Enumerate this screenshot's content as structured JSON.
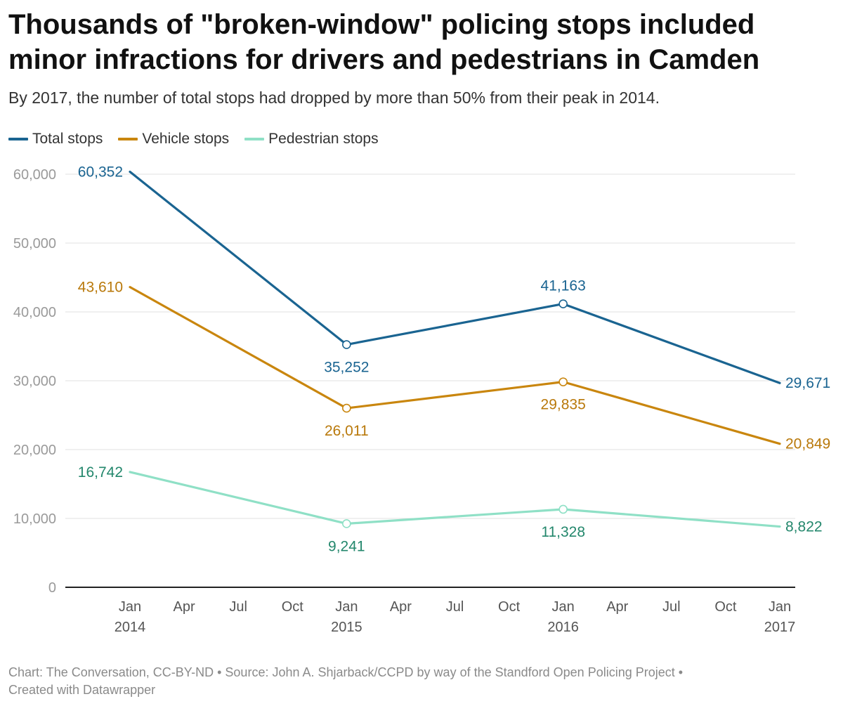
{
  "title": "Thousands of \"broken-window\" policing stops included minor infractions for drivers and pedestrians in Camden",
  "subtitle": "By 2017, the number of total stops had dropped by more than 50% from their peak in 2014.",
  "footer": {
    "line1": "Chart: The Conversation, CC-BY-ND • Source: John A. Shjarback/CCPD by way of the Standford Open Policing Project •",
    "line2": "Created with Datawrapper"
  },
  "chart_data": {
    "type": "line",
    "title": "Thousands of \"broken-window\" policing stops included minor infractions for drivers and pedestrians in Camden",
    "subtitle": "By 2017, the number of total stops had dropped by more than 50% from their peak in 2014.",
    "x": [
      "2014-01",
      "2015-01",
      "2016-01",
      "2017-01"
    ],
    "x_ticks": [
      {
        "month": "Jan",
        "year": "2014"
      },
      {
        "month": "Apr",
        "year": ""
      },
      {
        "month": "Jul",
        "year": ""
      },
      {
        "month": "Oct",
        "year": ""
      },
      {
        "month": "Jan",
        "year": "2015"
      },
      {
        "month": "Apr",
        "year": ""
      },
      {
        "month": "Jul",
        "year": ""
      },
      {
        "month": "Oct",
        "year": ""
      },
      {
        "month": "Jan",
        "year": "2016"
      },
      {
        "month": "Apr",
        "year": ""
      },
      {
        "month": "Jul",
        "year": ""
      },
      {
        "month": "Oct",
        "year": ""
      },
      {
        "month": "Jan",
        "year": "2017"
      }
    ],
    "y_ticks": [
      "0",
      "10,000",
      "20,000",
      "30,000",
      "40,000",
      "50,000",
      "60,000"
    ],
    "ylim": [
      0,
      60000
    ],
    "grid": true,
    "legend_position": "top-left",
    "series": [
      {
        "name": "Total stops",
        "color": "#1a6491",
        "label_color": "#1a6491",
        "values": [
          60352,
          35252,
          41163,
          29671
        ],
        "labels": [
          "60,352",
          "35,252",
          "41,163",
          "29,671"
        ],
        "label_positions": [
          "left",
          "below",
          "above",
          "right"
        ]
      },
      {
        "name": "Vehicle stops",
        "color": "#c9860e",
        "label_color": "#b9790b",
        "values": [
          43610,
          26011,
          29835,
          20849
        ],
        "labels": [
          "43,610",
          "26,011",
          "29,835",
          "20,849"
        ],
        "label_positions": [
          "left",
          "below",
          "below",
          "right"
        ]
      },
      {
        "name": "Pedestrian stops",
        "color": "#8fe0c6",
        "label_color": "#23876c",
        "values": [
          16742,
          9241,
          11328,
          8822
        ],
        "labels": [
          "16,742",
          "9,241",
          "11,328",
          "8,822"
        ],
        "label_positions": [
          "left",
          "below",
          "below",
          "right"
        ]
      }
    ]
  }
}
